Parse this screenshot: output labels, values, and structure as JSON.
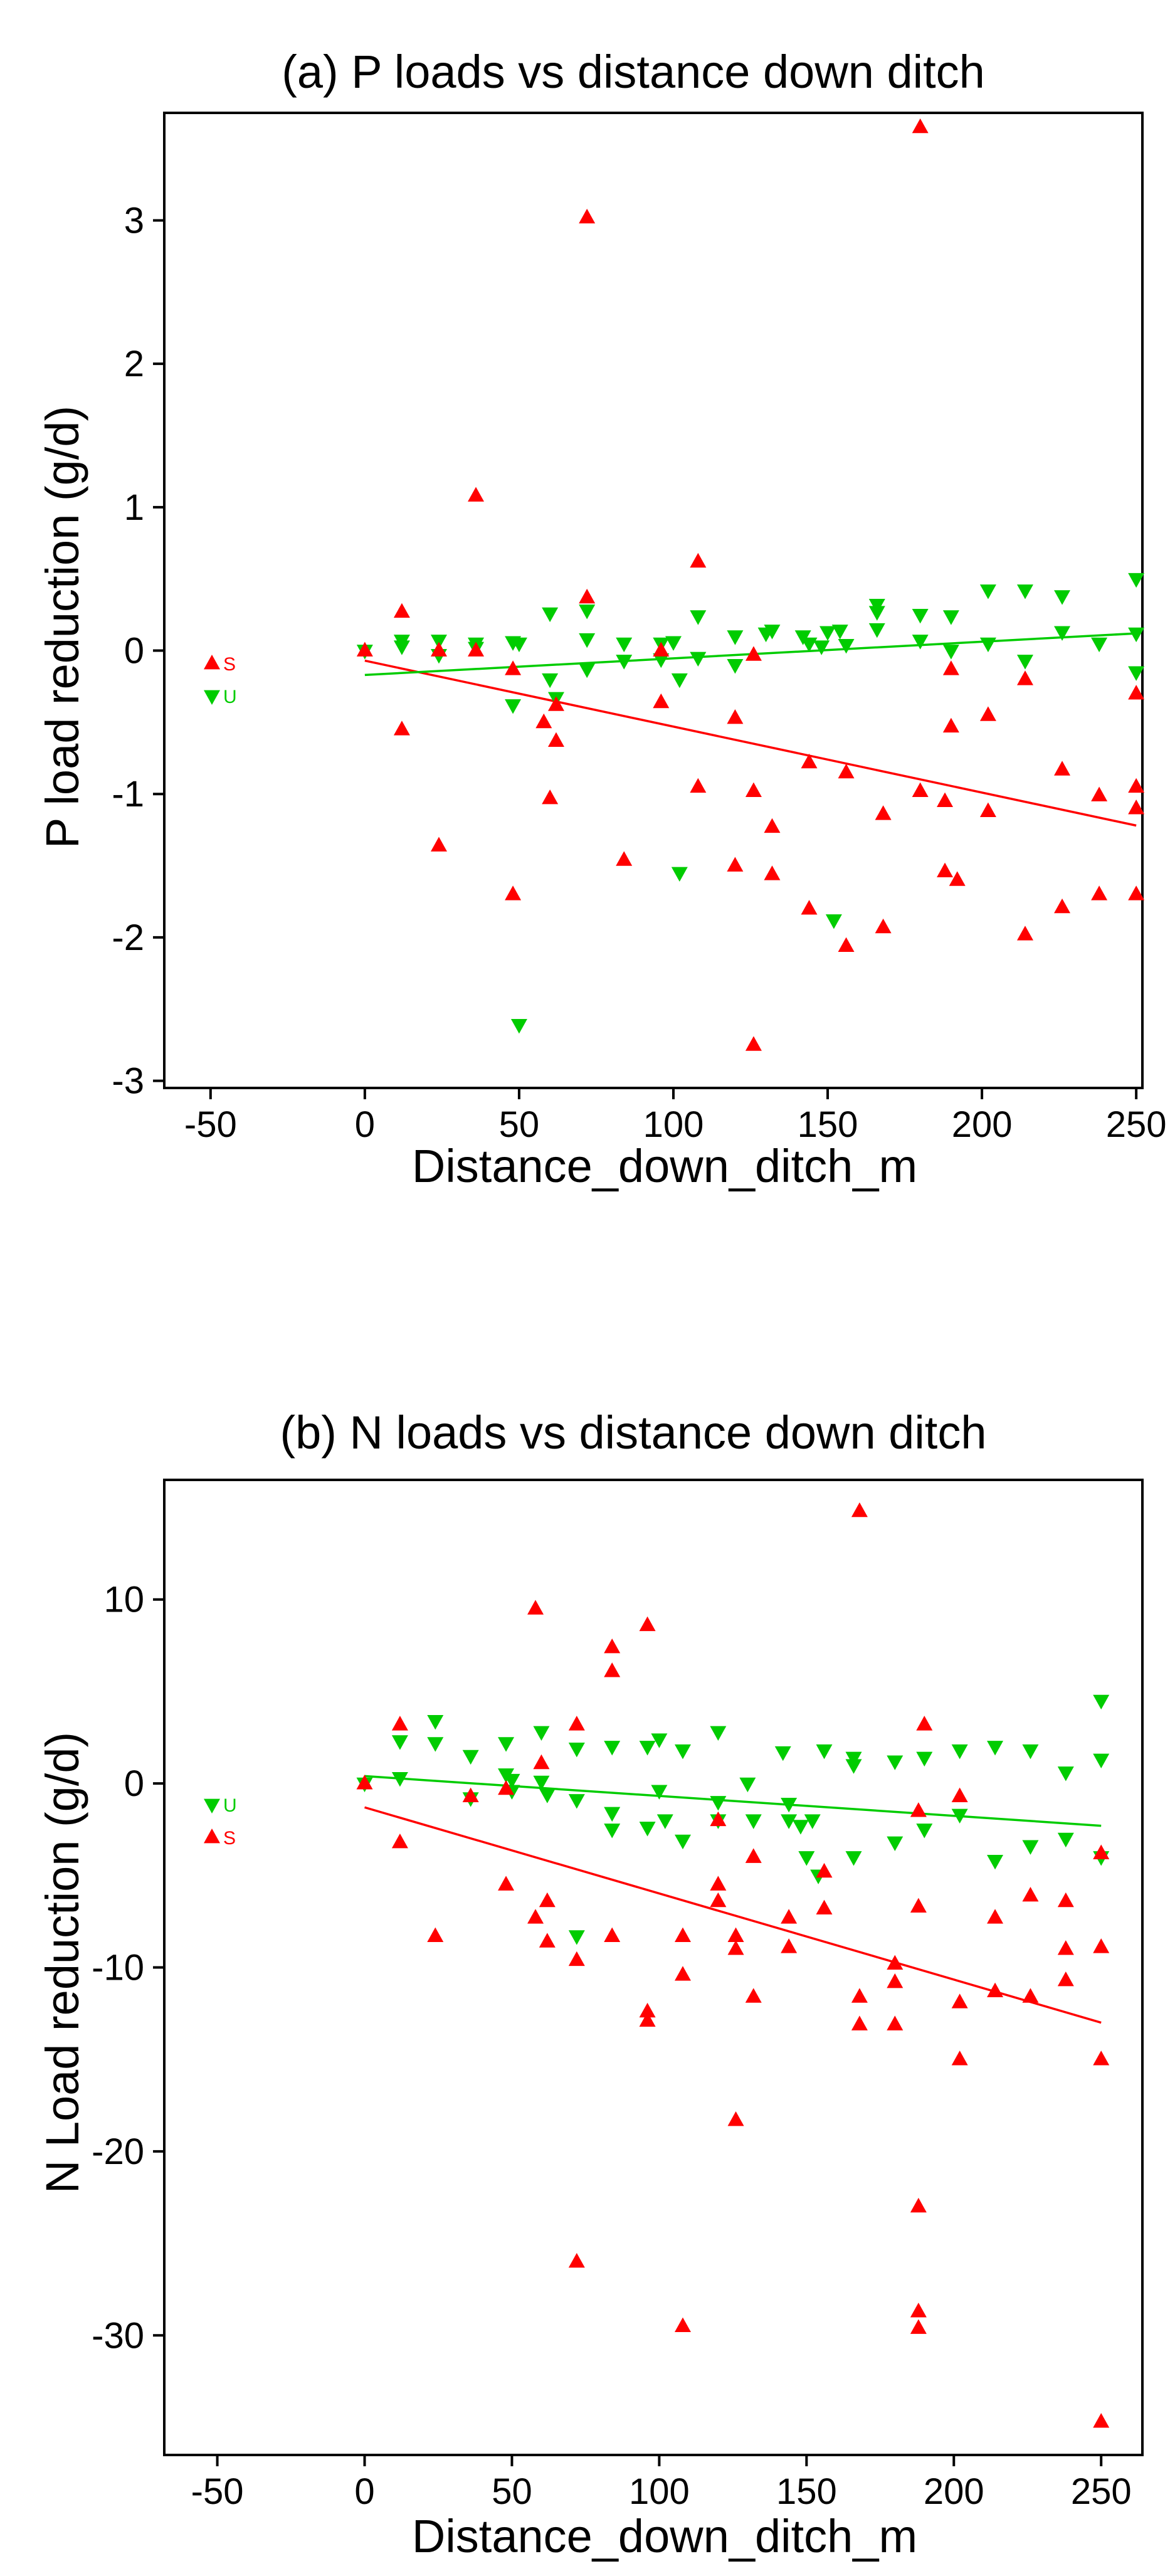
{
  "chart_data": [
    {
      "type": "scatter",
      "title": "(a) P loads vs distance down ditch",
      "xlabel": "Distance_down_ditch_m",
      "ylabel": "P load reduction (g/d)",
      "xlim": [
        -65,
        252
      ],
      "ylim": [
        -3.05,
        3.75
      ],
      "xticks": [
        -50,
        0,
        50,
        100,
        150,
        200,
        250
      ],
      "yticks": [
        -3,
        -2,
        -1,
        0,
        1,
        2,
        3
      ],
      "legend": [
        {
          "key": "S",
          "label": "S",
          "color": "#ff0000",
          "marker": "triangle-up"
        },
        {
          "key": "U",
          "label": "U",
          "color": "#00cc00",
          "marker": "triangle-down"
        }
      ],
      "series": [
        {
          "name": "S",
          "color": "#ff0000",
          "marker": "triangle-up",
          "fit": {
            "x": [
              0,
              250
            ],
            "y": [
              -0.07,
              -1.22
            ]
          },
          "points": [
            [
              0,
              0
            ],
            [
              12,
              0.27
            ],
            [
              12,
              -0.55
            ],
            [
              24,
              0
            ],
            [
              24,
              -1.36
            ],
            [
              36,
              0
            ],
            [
              36,
              1.08
            ],
            [
              48,
              -0.13
            ],
            [
              48,
              -1.7
            ],
            [
              58,
              -0.5
            ],
            [
              60,
              -1.03
            ],
            [
              62,
              -0.63
            ],
            [
              62,
              -0.38
            ],
            [
              72,
              0.37
            ],
            [
              72,
              3.02
            ],
            [
              84,
              -1.46
            ],
            [
              96,
              -0.36
            ],
            [
              96,
              0
            ],
            [
              108,
              0.62
            ],
            [
              108,
              -0.95
            ],
            [
              120,
              -0.47
            ],
            [
              120,
              -1.5
            ],
            [
              126,
              -2.75
            ],
            [
              126,
              -0.03
            ],
            [
              126,
              -0.98
            ],
            [
              132,
              -1.23
            ],
            [
              132,
              -1.56
            ],
            [
              144,
              -0.78
            ],
            [
              144,
              -1.8
            ],
            [
              156,
              -0.85
            ],
            [
              156,
              -2.06
            ],
            [
              168,
              -1.14
            ],
            [
              168,
              -1.93
            ],
            [
              180,
              -0.98
            ],
            [
              180,
              3.65
            ],
            [
              188,
              -1.05
            ],
            [
              188,
              -1.54
            ],
            [
              190,
              -0.13
            ],
            [
              190,
              -0.53
            ],
            [
              192,
              -1.6
            ],
            [
              202,
              -0.45
            ],
            [
              202,
              -1.12
            ],
            [
              214,
              -0.2
            ],
            [
              214,
              -1.98
            ],
            [
              226,
              -0.83
            ],
            [
              226,
              -1.79
            ],
            [
              238,
              -1.01
            ],
            [
              238,
              -1.7
            ],
            [
              250,
              -0.3
            ],
            [
              250,
              -0.95
            ],
            [
              250,
              -1.1
            ],
            [
              250,
              -1.7
            ]
          ]
        },
        {
          "name": "U",
          "color": "#00cc00",
          "marker": "triangle-down",
          "fit": {
            "x": [
              0,
              250
            ],
            "y": [
              -0.17,
              0.12
            ]
          },
          "points": [
            [
              0,
              0
            ],
            [
              12,
              0.07
            ],
            [
              12,
              0.03
            ],
            [
              24,
              0.07
            ],
            [
              24,
              -0.03
            ],
            [
              36,
              0.02
            ],
            [
              36,
              0.05
            ],
            [
              48,
              0.06
            ],
            [
              48,
              -0.38
            ],
            [
              50,
              -2.61
            ],
            [
              50,
              0.05
            ],
            [
              60,
              0.26
            ],
            [
              60,
              -0.2
            ],
            [
              62,
              -0.33
            ],
            [
              72,
              0.08
            ],
            [
              72,
              -0.13
            ],
            [
              72,
              0.28
            ],
            [
              84,
              0.05
            ],
            [
              84,
              -0.07
            ],
            [
              96,
              0.05
            ],
            [
              96,
              -0.06
            ],
            [
              100,
              0.06
            ],
            [
              102,
              -0.2
            ],
            [
              102,
              -1.55
            ],
            [
              108,
              0.24
            ],
            [
              108,
              -0.05
            ],
            [
              120,
              0.1
            ],
            [
              120,
              -0.1
            ],
            [
              130,
              0.12
            ],
            [
              132,
              0.14
            ],
            [
              142,
              0.1
            ],
            [
              144,
              0.05
            ],
            [
              148,
              0.03
            ],
            [
              150,
              0.13
            ],
            [
              152,
              -1.88
            ],
            [
              154,
              0.14
            ],
            [
              156,
              0.04
            ],
            [
              166,
              0.27
            ],
            [
              166,
              0.32
            ],
            [
              166,
              0.15
            ],
            [
              180,
              0.07
            ],
            [
              180,
              0.25
            ],
            [
              190,
              0.24
            ],
            [
              190,
              0.0
            ],
            [
              202,
              0.05
            ],
            [
              202,
              0.42
            ],
            [
              214,
              -0.07
            ],
            [
              214,
              0.42
            ],
            [
              226,
              0.38
            ],
            [
              226,
              0.13
            ],
            [
              238,
              0.05
            ],
            [
              250,
              0.5
            ],
            [
              250,
              0.12
            ],
            [
              250,
              -0.15
            ]
          ]
        }
      ]
    },
    {
      "type": "scatter",
      "title": "(b) N loads vs distance down ditch",
      "xlabel": "Distance_down_ditch_m",
      "ylabel": "N Load reduction (g/d)",
      "xlim": [
        -68,
        264
      ],
      "ylim": [
        -36.5,
        16.5
      ],
      "xticks": [
        -50,
        0,
        50,
        100,
        150,
        200,
        250
      ],
      "yticks": [
        -30,
        -20,
        -10,
        0,
        10
      ],
      "legend": [
        {
          "key": "U",
          "label": "U",
          "color": "#00cc00",
          "marker": "triangle-down"
        },
        {
          "key": "S",
          "label": "S",
          "color": "#ff0000",
          "marker": "triangle-up"
        }
      ],
      "series": [
        {
          "name": "S",
          "color": "#ff0000",
          "marker": "triangle-up",
          "fit": {
            "x": [
              0,
              250
            ],
            "y": [
              -1.3,
              -13.0
            ]
          },
          "points": [
            [
              0,
              0
            ],
            [
              12,
              3.2
            ],
            [
              12,
              -3.2
            ],
            [
              24,
              -8.3
            ],
            [
              36,
              -0.7
            ],
            [
              48,
              -5.5
            ],
            [
              48,
              -0.3
            ],
            [
              58,
              9.5
            ],
            [
              58,
              -7.3
            ],
            [
              60,
              1.1
            ],
            [
              62,
              -6.4
            ],
            [
              62,
              -8.6
            ],
            [
              72,
              3.2
            ],
            [
              72,
              -9.6
            ],
            [
              72,
              -26.0
            ],
            [
              84,
              7.4
            ],
            [
              84,
              6.1
            ],
            [
              84,
              -8.3
            ],
            [
              96,
              8.6
            ],
            [
              96,
              -12.4
            ],
            [
              96,
              -12.9
            ],
            [
              108,
              -8.3
            ],
            [
              108,
              -10.4
            ],
            [
              108,
              -29.5
            ],
            [
              120,
              -2.0
            ],
            [
              120,
              -5.5
            ],
            [
              120,
              -6.4
            ],
            [
              126,
              -8.3
            ],
            [
              126,
              -9.0
            ],
            [
              126,
              -18.3
            ],
            [
              132,
              -4.0
            ],
            [
              132,
              -11.6
            ],
            [
              144,
              -7.3
            ],
            [
              144,
              -8.9
            ],
            [
              156,
              -4.8
            ],
            [
              156,
              -6.8
            ],
            [
              168,
              -11.6
            ],
            [
              168,
              14.8
            ],
            [
              168,
              -13.1
            ],
            [
              180,
              -9.8
            ],
            [
              180,
              -10.8
            ],
            [
              180,
              -13.1
            ],
            [
              188,
              -1.5
            ],
            [
              188,
              -6.7
            ],
            [
              188,
              -23.0
            ],
            [
              188,
              -28.7
            ],
            [
              188,
              -29.6
            ],
            [
              190,
              3.2
            ],
            [
              202,
              -15.0
            ],
            [
              202,
              -11.9
            ],
            [
              202,
              -0.7
            ],
            [
              214,
              -11.3
            ],
            [
              214,
              -7.3
            ],
            [
              226,
              -11.6
            ],
            [
              226,
              -6.1
            ],
            [
              238,
              -9.0
            ],
            [
              238,
              -10.7
            ],
            [
              238,
              -6.4
            ],
            [
              250,
              -3.8
            ],
            [
              250,
              -8.9
            ],
            [
              250,
              -15.0
            ],
            [
              250,
              -34.7
            ]
          ]
        },
        {
          "name": "U",
          "color": "#00cc00",
          "marker": "triangle-down",
          "fit": {
            "x": [
              0,
              250
            ],
            "y": [
              0.4,
              -2.3
            ]
          },
          "points": [
            [
              0,
              0
            ],
            [
              12,
              2.3
            ],
            [
              12,
              0.3
            ],
            [
              24,
              3.4
            ],
            [
              24,
              2.2
            ],
            [
              36,
              1.5
            ],
            [
              36,
              -0.8
            ],
            [
              48,
              2.2
            ],
            [
              48,
              0.5
            ],
            [
              50,
              0.2
            ],
            [
              50,
              -0.4
            ],
            [
              60,
              2.8
            ],
            [
              60,
              0.1
            ],
            [
              62,
              -0.6
            ],
            [
              72,
              1.9
            ],
            [
              72,
              -0.9
            ],
            [
              72,
              -8.3
            ],
            [
              84,
              2.0
            ],
            [
              84,
              -1.6
            ],
            [
              84,
              -2.5
            ],
            [
              96,
              2.0
            ],
            [
              96,
              -2.4
            ],
            [
              100,
              2.4
            ],
            [
              100,
              -0.4
            ],
            [
              102,
              -2.0
            ],
            [
              108,
              1.8
            ],
            [
              108,
              -3.1
            ],
            [
              120,
              2.8
            ],
            [
              120,
              -1.0
            ],
            [
              120,
              -2.0
            ],
            [
              130,
              0.0
            ],
            [
              132,
              -2.0
            ],
            [
              142,
              1.7
            ],
            [
              144,
              -1.1
            ],
            [
              144,
              -2.0
            ],
            [
              148,
              -2.3
            ],
            [
              150,
              -4.0
            ],
            [
              152,
              -2.0
            ],
            [
              154,
              -5.0
            ],
            [
              156,
              1.8
            ],
            [
              166,
              1.4
            ],
            [
              166,
              1.0
            ],
            [
              166,
              -4.0
            ],
            [
              180,
              -3.2
            ],
            [
              180,
              1.2
            ],
            [
              190,
              1.4
            ],
            [
              190,
              -2.5
            ],
            [
              202,
              -1.7
            ],
            [
              202,
              1.8
            ],
            [
              214,
              2.0
            ],
            [
              214,
              -4.2
            ],
            [
              226,
              1.8
            ],
            [
              226,
              -3.4
            ],
            [
              238,
              0.6
            ],
            [
              238,
              -3.0
            ],
            [
              250,
              4.5
            ],
            [
              250,
              1.3
            ],
            [
              250,
              -4.0
            ]
          ]
        }
      ]
    }
  ]
}
